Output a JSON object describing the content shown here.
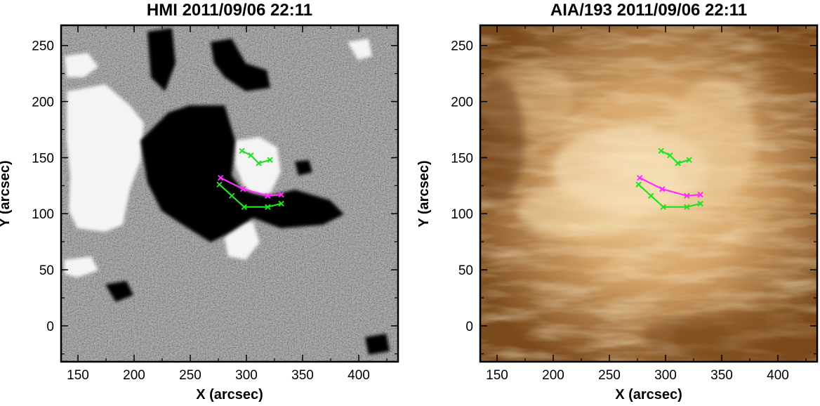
{
  "panels": [
    {
      "title": "HMI 2011/09/06 22:11",
      "xlabel": "X (arcsec)",
      "ylabel": "Y (arcsec)",
      "image_kind": "magnetogram",
      "colors": {
        "background": "#7d7d7d",
        "positive": "#f4f4f4",
        "negative": "#050505"
      }
    },
    {
      "title": "AIA/193 2011/09/06 22:11",
      "xlabel": "X (arcsec)",
      "ylabel": "Y (arcsec)",
      "image_kind": "euv",
      "colors": {
        "background": "#b7844a",
        "bright": "#f6e1b8",
        "dark": "#6a3e14"
      }
    }
  ],
  "chart_data": {
    "type": "scatter",
    "xlim": [
      135,
      435
    ],
    "ylim": [
      -32,
      268
    ],
    "xticks": [
      150,
      200,
      250,
      300,
      350,
      400
    ],
    "yticks": [
      0,
      50,
      100,
      150,
      200,
      250
    ],
    "series": [
      {
        "color": "#ff2dff",
        "x": [
          277,
          297,
          319,
          331
        ],
        "y": [
          132,
          122,
          116,
          117
        ]
      },
      {
        "color": "#22e022",
        "x": [
          276,
          287,
          298,
          319,
          331
        ],
        "y": [
          126,
          116,
          106,
          106,
          109
        ]
      },
      {
        "color": "#22e022",
        "x": [
          296,
          304,
          311,
          321
        ],
        "y": [
          156,
          152,
          145,
          148
        ]
      }
    ]
  }
}
